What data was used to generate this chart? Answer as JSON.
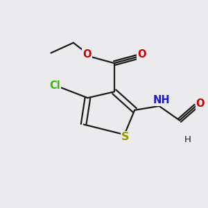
{
  "bg_color": "#ebebed",
  "bond_color": "#1a1a1a",
  "bond_width": 1.6,
  "atom_colors": {
    "C": "#1a1a1a",
    "O": "#cc0000",
    "N": "#1a1acc",
    "S": "#999900",
    "Cl": "#33bb00",
    "H": "#1a1a1a"
  },
  "font_size": 10.5,
  "fig_size": [
    3.0,
    3.0
  ],
  "dpi": 100,
  "xlim": [
    0,
    10
  ],
  "ylim": [
    0,
    10
  ]
}
